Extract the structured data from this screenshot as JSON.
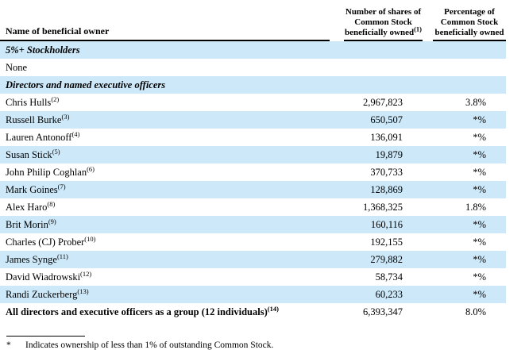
{
  "colors": {
    "row_highlight": "#cde9f9",
    "rule": "#000000",
    "text": "#000000",
    "background": "#ffffff"
  },
  "table": {
    "header": {
      "name": "Name of beneficial owner",
      "shares_lines": [
        "Number of shares of",
        "Common Stock",
        "beneficially owned"
      ],
      "shares_sup": "(1)",
      "pct_lines": [
        "Percentage of",
        "Common Stock",
        "beneficially owned"
      ]
    },
    "rows": [
      {
        "type": "section",
        "label": "5%+ Stockholders"
      },
      {
        "type": "plain",
        "label": "None"
      },
      {
        "type": "section",
        "label": "Directors and named executive officers"
      },
      {
        "type": "data",
        "name": "Chris Hulls",
        "sup": "(2)",
        "shares": "2,967,823",
        "pct": "3.8%"
      },
      {
        "type": "data",
        "name": "Russell Burke",
        "sup": "(3)",
        "shares": "650,507",
        "pct": "*%"
      },
      {
        "type": "data",
        "name": "Lauren Antonoff",
        "sup": "(4)",
        "shares": "136,091",
        "pct": "*%"
      },
      {
        "type": "data",
        "name": "Susan Stick",
        "sup": "(5)",
        "shares": "19,879",
        "pct": "*%"
      },
      {
        "type": "data",
        "name": "John Philip Coghlan",
        "sup": "(6)",
        "shares": "370,733",
        "pct": "*%"
      },
      {
        "type": "data",
        "name": "Mark Goines",
        "sup": "(7)",
        "shares": "128,869",
        "pct": "*%"
      },
      {
        "type": "data",
        "name": "Alex Haro",
        "sup": "(8)",
        "shares": "1,368,325",
        "pct": "1.8%"
      },
      {
        "type": "data",
        "name": "Brit Morin",
        "sup": "(9)",
        "shares": "160,116",
        "pct": "*%"
      },
      {
        "type": "data",
        "name": "Charles (CJ) Prober",
        "sup": "(10)",
        "shares": "192,155",
        "pct": "*%"
      },
      {
        "type": "data",
        "name": "James Synge",
        "sup": "(11)",
        "shares": "279,882",
        "pct": "*%"
      },
      {
        "type": "data",
        "name": "David Wiadrowski",
        "sup": "(12)",
        "shares": "58,734",
        "pct": "*%"
      },
      {
        "type": "data",
        "name": "Randi Zuckerberg",
        "sup": "(13)",
        "shares": "60,233",
        "pct": "*%"
      },
      {
        "type": "total",
        "name": "All directors and executive officers as a group (12 individuals)",
        "sup": "(14)",
        "shares": "6,393,347",
        "pct": "8.0%"
      }
    ]
  },
  "footnote": {
    "symbol": "*",
    "text": "Indicates ownership of less than 1% of outstanding Common Stock."
  }
}
